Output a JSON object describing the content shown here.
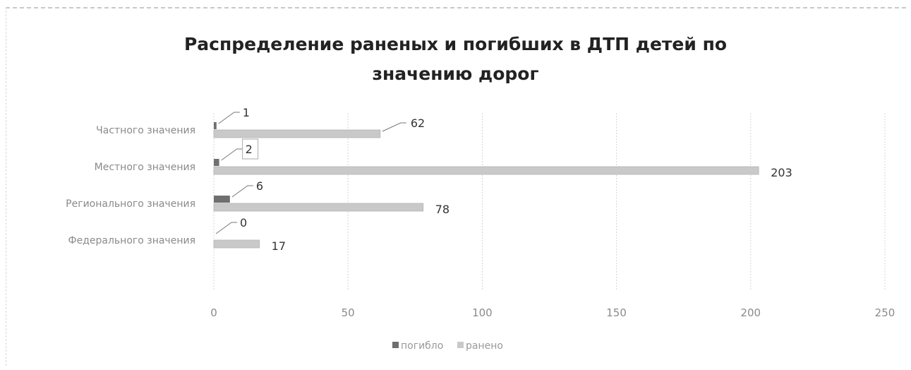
{
  "chart_data": {
    "type": "bar",
    "orientation": "horizontal",
    "title_lines": [
      "Распределение раненых и погибших в ДТП детей по",
      "значению дорог"
    ],
    "categories": [
      "Частного значения",
      "Местного значения",
      "Регионального значения",
      "Федерального значения"
    ],
    "series": [
      {
        "name": "погибло",
        "values": [
          1,
          2,
          6,
          0
        ],
        "color": "#6f6f6f"
      },
      {
        "name": "ранено",
        "values": [
          62,
          203,
          78,
          17
        ],
        "color": "#c9c9c9"
      }
    ],
    "xlim": [
      0,
      250
    ],
    "xticks": [
      "0",
      "50",
      "100",
      "150",
      "200",
      "250"
    ],
    "grid": true,
    "legend": "bottom"
  }
}
